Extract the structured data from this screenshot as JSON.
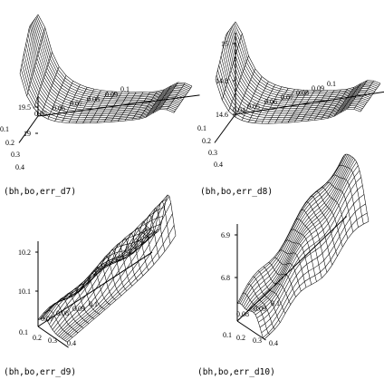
{
  "chart_data": [
    {
      "type": "surface",
      "caption": "(bh,bo,err_d7)",
      "z_ticks": [
        "19.5",
        "19"
      ],
      "bh_ticks": [
        "0.1",
        "0.2",
        "0.3",
        "0.4"
      ],
      "bo_ticks": [
        "0.05",
        "0.06",
        "0.07",
        "0.08",
        "0.09",
        "0.1"
      ],
      "zlim": [
        18.9,
        19.9
      ],
      "shape": "cliff",
      "grid": {
        "rows": 18,
        "cols": 22
      }
    },
    {
      "type": "surface",
      "caption": "(bh,bo,err_d8)",
      "z_ticks": [
        "15",
        "14.8",
        "14.6"
      ],
      "bh_ticks": [
        "0.1",
        "0.2",
        "0.3",
        "0.4"
      ],
      "bo_ticks": [
        "0.04",
        "0.05",
        "0.06",
        "0.07",
        "0.08",
        "0.09",
        "0.1"
      ],
      "zlim": [
        14.5,
        15.15
      ],
      "shape": "cliff",
      "grid": {
        "rows": 18,
        "cols": 22
      }
    },
    {
      "type": "surface",
      "caption": "(bh,bo,err_d9)",
      "z_ticks": [
        "10.2",
        "10.1"
      ],
      "bh_ticks": [
        "0.1",
        "0.2",
        "0.3",
        "0.4"
      ],
      "bo_ticks": [
        "0.07",
        "0.08",
        "0.09",
        "0.1"
      ],
      "zlim": [
        10.03,
        10.27
      ],
      "shape": "ridge",
      "grid": {
        "rows": 18,
        "cols": 20
      }
    },
    {
      "type": "surface",
      "caption": "(bh,bo,err_d10)",
      "z_ticks": [
        "6.9",
        "6.8"
      ],
      "bh_ticks": [
        "0.1",
        "0.2",
        "0.3",
        "0.4"
      ],
      "bo_ticks": [
        "0.08",
        "0.09",
        "0.1"
      ],
      "zlim": [
        6.73,
        6.96
      ],
      "shape": "wave",
      "grid": {
        "rows": 18,
        "cols": 20
      }
    }
  ]
}
